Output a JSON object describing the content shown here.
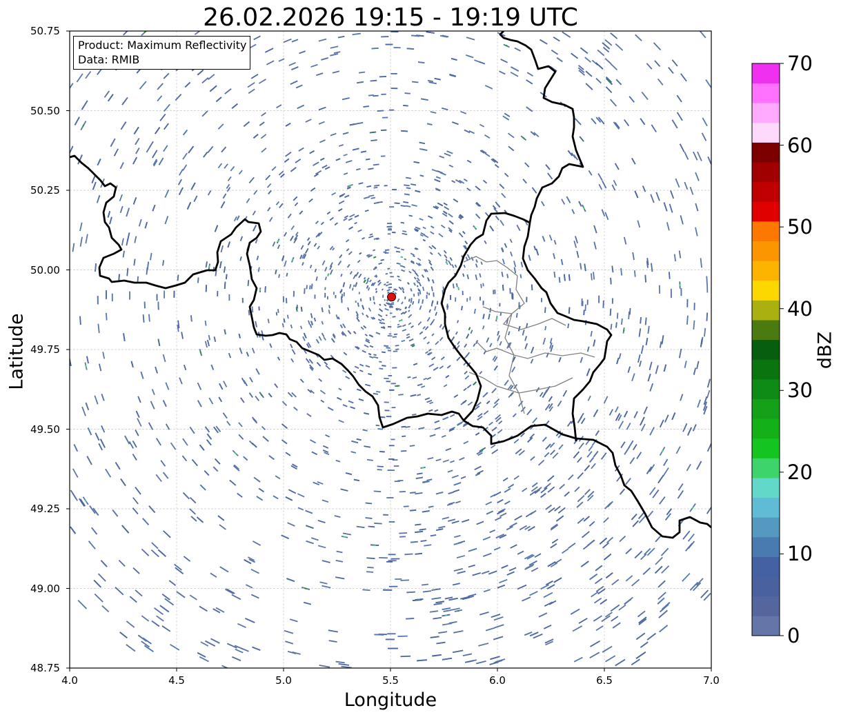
{
  "title": "26.02.2026 19:15 - 19:19 UTC",
  "info": {
    "product": "Product: Maximum Reflectivity",
    "data": "Data: RMIB"
  },
  "axes": {
    "xlabel": "Longitude",
    "ylabel": "Latitude",
    "x_ticks": [
      "4.0",
      "4.5",
      "5.0",
      "5.5",
      "6.0",
      "6.5",
      "7.0"
    ],
    "y_ticks": [
      "50.75",
      "50.50",
      "50.25",
      "50.00",
      "49.75",
      "49.50",
      "49.25",
      "49.00",
      "48.75"
    ],
    "xlim": [
      4.0,
      7.0
    ],
    "ylim": [
      48.75,
      50.75
    ],
    "grid": true
  },
  "radar_site": {
    "lon": 5.505,
    "lat": 49.915,
    "color": "#e01010"
  },
  "colorbar": {
    "label": "dBZ",
    "ticks": [
      "0",
      "10",
      "20",
      "30",
      "40",
      "50",
      "60",
      "70"
    ],
    "range": [
      0,
      70
    ],
    "colors": [
      "#6675a8",
      "#55669e",
      "#4a61a0",
      "#4361a3",
      "#4a7bb0",
      "#5598c0",
      "#60bcd5",
      "#62d8c8",
      "#3ed46c",
      "#14c420",
      "#14b018",
      "#14a018",
      "#0e8a16",
      "#0a740f",
      "#065e0e",
      "#4a7a10",
      "#aab010",
      "#fcd800",
      "#fcb400",
      "#fc9600",
      "#fc7800",
      "#e00000",
      "#c00000",
      "#a00000",
      "#7c0000",
      "#ffd9fc",
      "#ffaaff",
      "#ff72ff",
      "#f030f0"
    ]
  },
  "borders": {
    "color": "#000000",
    "lux_internal_color": "#808080"
  }
}
